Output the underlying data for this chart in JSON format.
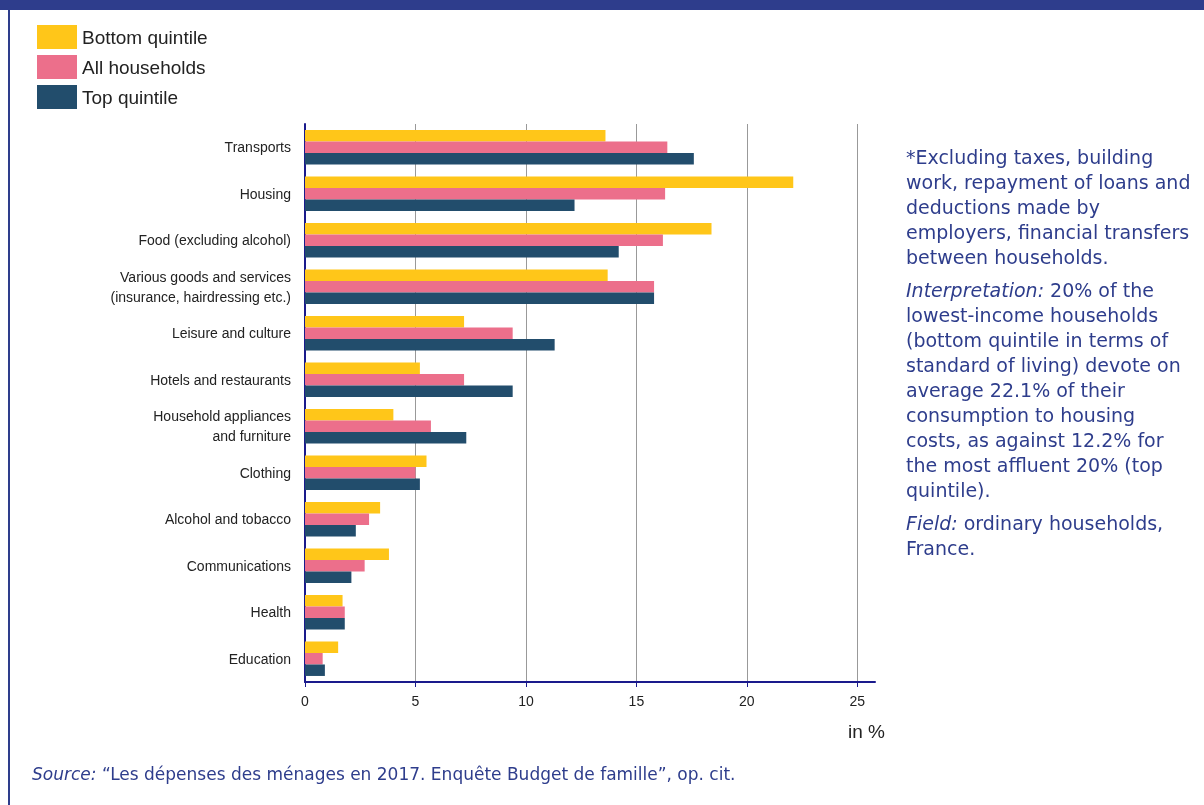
{
  "chart_data": {
    "type": "bar",
    "orientation": "horizontal",
    "xlabel": "in %",
    "categories": [
      "Transports",
      "Housing",
      "Food (excluding alcohol)",
      "Various goods and services\n(insurance, hairdressing etc.)",
      "Leisure and culture",
      "Hotels and restaurants",
      "Household appliances\nand furniture",
      "Clothing",
      "Alcohol and tobacco",
      "Communications",
      "Health",
      "Education"
    ],
    "series": [
      {
        "name": "Bottom quintile",
        "color": "#ffc619",
        "values": [
          13.6,
          22.1,
          18.4,
          13.7,
          7.2,
          5.2,
          4.0,
          5.5,
          3.4,
          3.8,
          1.7,
          1.5
        ]
      },
      {
        "name": "All households",
        "color": "#ec6f8b",
        "values": [
          16.4,
          16.3,
          16.2,
          15.8,
          9.4,
          7.2,
          5.7,
          5.0,
          2.9,
          2.7,
          1.8,
          0.8
        ]
      },
      {
        "name": "Top quintile",
        "color": "#224d6c",
        "values": [
          17.6,
          12.2,
          14.2,
          15.8,
          11.3,
          9.4,
          7.3,
          5.2,
          2.3,
          2.1,
          1.8,
          0.9
        ]
      }
    ],
    "xlim": [
      0,
      25.8
    ],
    "xticks": [
      0,
      5,
      10,
      15,
      20,
      25
    ],
    "grid": "x",
    "legend": "top left",
    "annotations": [
      "*Excluding taxes, building work, repayment of loans and deductions made by employers, financial transfers between households.",
      "Interpretation: 20% of the lowest-income households (bottom quintile in terms of standard of living) devote on average 22.1% of their consumption to housing costs, as against 12.2% for the most affluent 20% (top quintile).",
      "Field: ordinary households, France.",
      "Source: “Les dépenses des ménages en 2017. Enquête Budget de famille”, op. cit."
    ]
  }
}
